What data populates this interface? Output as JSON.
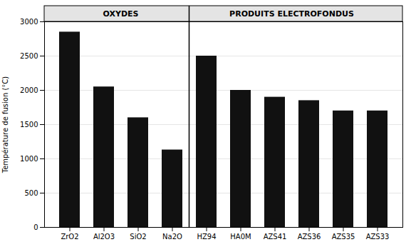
{
  "chart_data": {
    "type": "bar",
    "categories": [
      "ZrO2",
      "Al2O3",
      "SiO2",
      "Na2O",
      "HZ94",
      "HA0M",
      "AZS41",
      "AZS36",
      "AZS35",
      "AZS33"
    ],
    "values": [
      2850,
      2050,
      1600,
      1130,
      2500,
      2000,
      1900,
      1850,
      1700,
      1700
    ],
    "color": "#111111",
    "ylabel": "Température de fusion (°C)",
    "ylim": [
      0,
      3000
    ],
    "yticks": [
      0,
      500,
      1000,
      1500,
      2000,
      2500,
      3000
    ],
    "grid": true,
    "annotations": [
      {
        "text": "OXYDES",
        "from": "ZrO2",
        "to": "Na2O"
      },
      {
        "text": "PRODUITS ELECTROFONDUS",
        "from": "HZ94",
        "to": "AZS33"
      }
    ]
  }
}
